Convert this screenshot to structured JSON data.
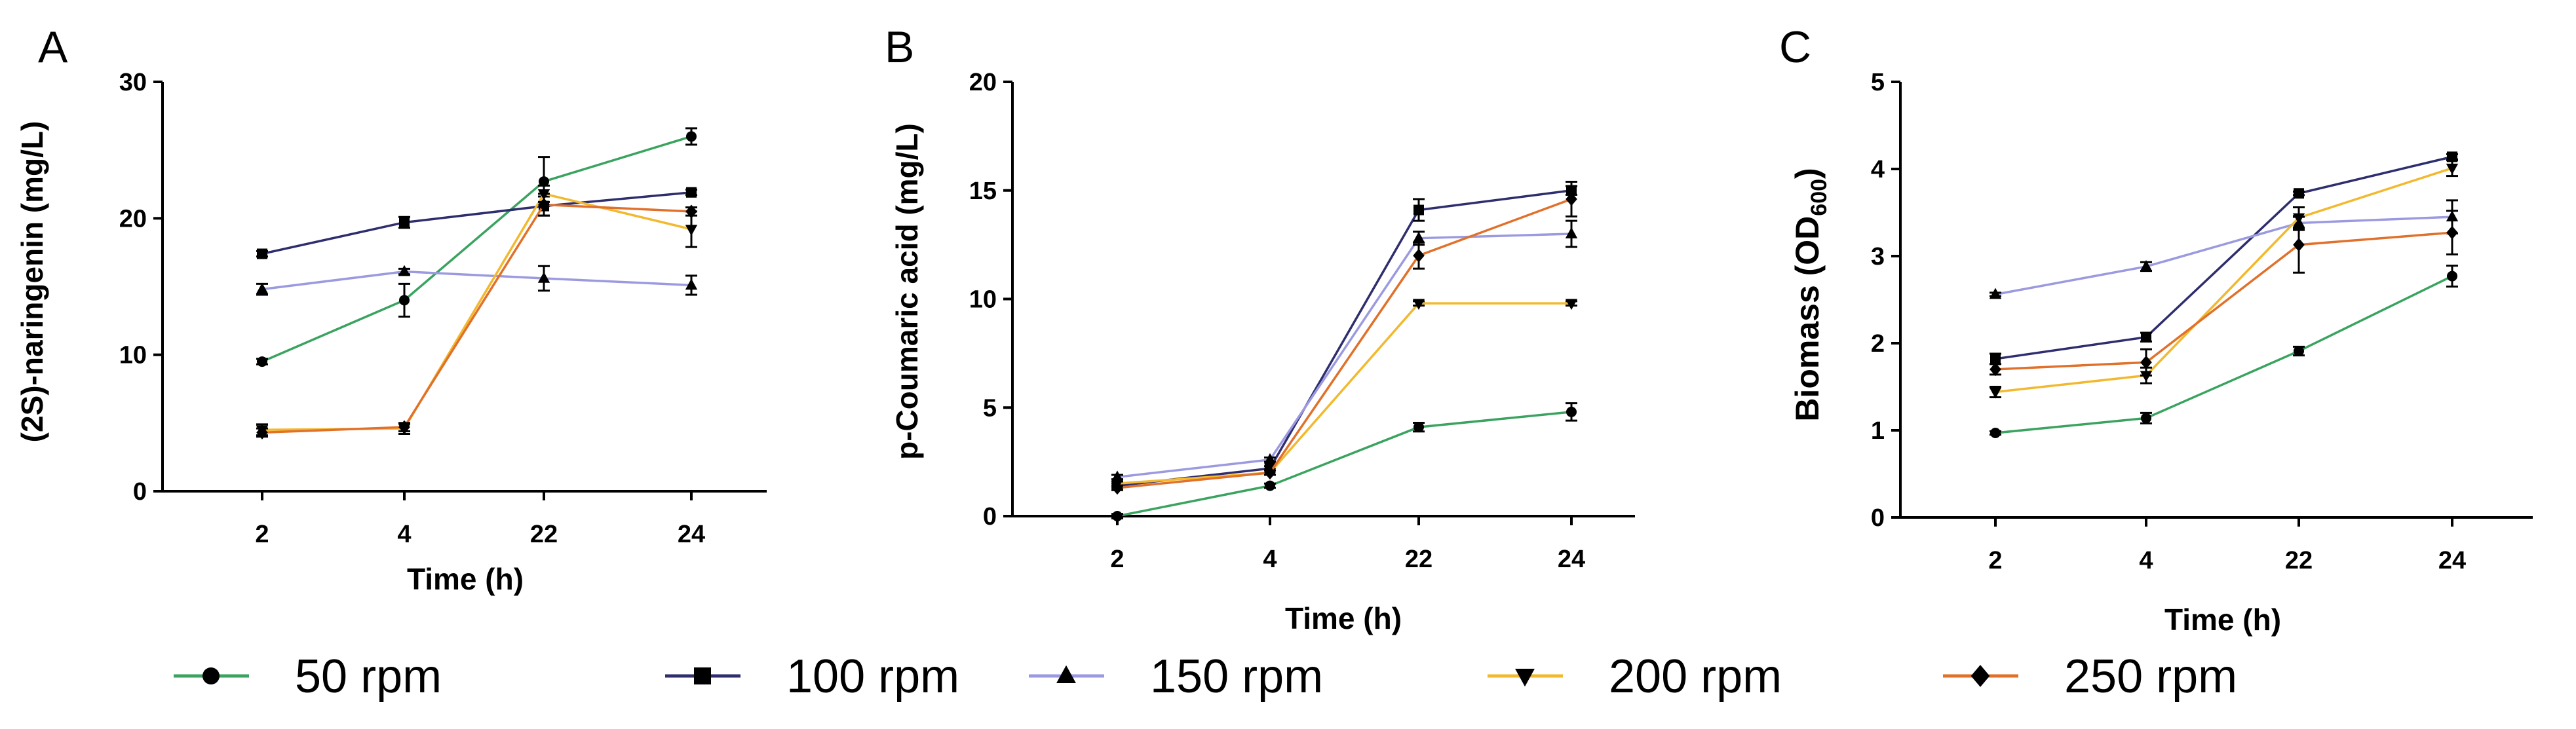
{
  "chart_data": [
    {
      "panel": "A",
      "type": "line",
      "xlabel": "Time (h)",
      "ylabel": "(2S)-naringenin (mg/L)",
      "categories": [
        "2",
        "4",
        "22",
        "24"
      ],
      "ylim": [
        0,
        30
      ],
      "yticks": [
        "0",
        "10",
        "20",
        "30"
      ],
      "series": [
        {
          "name": "50 rpm",
          "values": [
            9.5,
            14.0,
            22.7,
            26.0
          ],
          "errors": [
            0.2,
            1.2,
            1.8,
            0.6
          ]
        },
        {
          "name": "100 rpm",
          "values": [
            17.4,
            19.7,
            20.9,
            21.9
          ],
          "errors": [
            0.2,
            0.4,
            0.7,
            0.2
          ]
        },
        {
          "name": "150 rpm",
          "values": [
            14.8,
            16.1,
            15.6,
            15.1
          ],
          "errors": [
            0.4,
            0.2,
            0.9,
            0.7
          ]
        },
        {
          "name": "200 rpm",
          "values": [
            4.5,
            4.6,
            21.8,
            19.2
          ],
          "errors": [
            0.4,
            0.4,
            0.6,
            1.3
          ]
        },
        {
          "name": "250 rpm",
          "values": [
            4.3,
            4.7,
            21.0,
            20.5
          ],
          "errors": [
            0.3,
            0.3,
            0.8,
            0.3
          ]
        }
      ]
    },
    {
      "panel": "B",
      "type": "line",
      "xlabel": "Time (h)",
      "ylabel": "p-Coumaric acid (mg/L)",
      "categories": [
        "2",
        "4",
        "22",
        "24"
      ],
      "ylim": [
        0,
        20
      ],
      "yticks": [
        "0",
        "5",
        "10",
        "15",
        "20"
      ],
      "series": [
        {
          "name": "50 rpm",
          "values": [
            0.0,
            1.4,
            4.1,
            4.8
          ],
          "errors": [
            0.1,
            0.1,
            0.2,
            0.4
          ]
        },
        {
          "name": "100 rpm",
          "values": [
            1.4,
            2.2,
            14.1,
            15.0
          ],
          "errors": [
            0.1,
            0.1,
            0.5,
            0.2
          ]
        },
        {
          "name": "150 rpm",
          "values": [
            1.8,
            2.6,
            12.8,
            13.0
          ],
          "errors": [
            0.1,
            0.1,
            0.3,
            0.6
          ]
        },
        {
          "name": "200 rpm",
          "values": [
            1.5,
            2.0,
            9.8,
            9.8
          ],
          "errors": [
            0.1,
            0.1,
            0.1,
            0.1
          ]
        },
        {
          "name": "250 rpm",
          "values": [
            1.3,
            2.0,
            12.0,
            14.6
          ],
          "errors": [
            0.1,
            0.1,
            0.6,
            0.8
          ]
        }
      ]
    },
    {
      "panel": "C",
      "type": "line",
      "xlabel": "Time (h)",
      "ylabel": "Biomass (OD",
      "ylabel_subscript": "600",
      "ylabel_suffix": ")",
      "categories": [
        "2",
        "4",
        "22",
        "24"
      ],
      "ylim": [
        0,
        5
      ],
      "yticks": [
        "0",
        "1",
        "2",
        "3",
        "4",
        "5"
      ],
      "series": [
        {
          "name": "50 rpm",
          "values": [
            0.97,
            1.14,
            1.91,
            2.77
          ],
          "errors": [
            0.02,
            0.06,
            0.05,
            0.12
          ]
        },
        {
          "name": "100 rpm",
          "values": [
            1.82,
            2.07,
            3.72,
            4.14
          ],
          "errors": [
            0.06,
            0.05,
            0.02,
            0.03
          ]
        },
        {
          "name": "150 rpm",
          "values": [
            2.56,
            2.88,
            3.38,
            3.45
          ],
          "errors": [
            0.02,
            0.05,
            0.08,
            0.19
          ]
        },
        {
          "name": "200 rpm",
          "values": [
            1.44,
            1.63,
            3.44,
            4.01
          ],
          "errors": [
            0.06,
            0.09,
            0.12,
            0.09
          ]
        },
        {
          "name": "250 rpm",
          "values": [
            1.7,
            1.78,
            3.13,
            3.27
          ],
          "errors": [
            0.06,
            0.15,
            0.32,
            0.25
          ]
        }
      ]
    }
  ],
  "legend": {
    "items": [
      {
        "label": "50 rpm",
        "color": "#3aa35f",
        "marker": "circle"
      },
      {
        "label": "100 rpm",
        "color": "#2e2d6e",
        "marker": "square"
      },
      {
        "label": "150 rpm",
        "color": "#9b9ae0",
        "marker": "triangle-up"
      },
      {
        "label": "200 rpm",
        "color": "#f2b92e",
        "marker": "triangle-down"
      },
      {
        "label": "250 rpm",
        "color": "#e0702a",
        "marker": "diamond"
      }
    ]
  }
}
